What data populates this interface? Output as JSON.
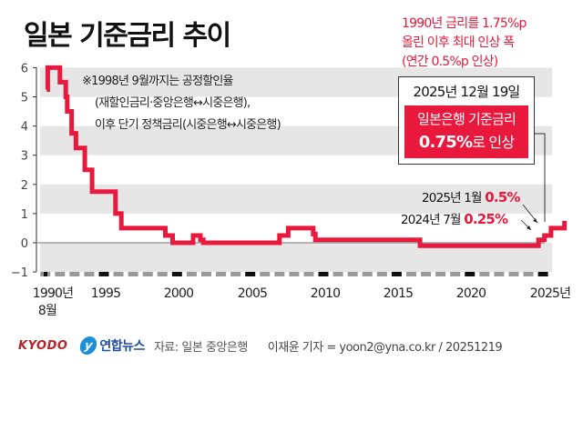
{
  "header": {
    "title": "일본 기준금리 추이"
  },
  "note_red": {
    "lines": [
      "1990년 금리를 1.75%p",
      "올린 이후 최대 인상 폭",
      "(연간 0.5%p 인상)"
    ]
  },
  "callout": {
    "date": "2025년 12월 19일",
    "line1": "일본은행 기준금리",
    "value": "0.75%",
    "suffix": "로 인상"
  },
  "footnote": {
    "lines": [
      "※1998년 9월까지는 공정할인율",
      "(재할인금리·중앙은행↔시중은행),",
      "이후 단기 정책금리(시중은행↔시중은행)"
    ]
  },
  "annotations": [
    {
      "label": "2025년 1월",
      "value": "0.5%"
    },
    {
      "label": "2024년 7월",
      "value": "0.25%"
    }
  ],
  "axes": {
    "y_ticks": [
      "6",
      "5",
      "4",
      "3",
      "2",
      "1",
      "0",
      "−1"
    ],
    "x_ticks": [
      "1990년",
      "1995",
      "2000",
      "2005",
      "2010",
      "2015",
      "2020",
      "2025년"
    ],
    "x_first_sub": "8월"
  },
  "footer": {
    "kyodo": "KYODO",
    "yna_mark": "y",
    "yna_text": "연합뉴스",
    "source": "자료: 일본 중앙은행",
    "reporter": "이재윤 기자 = yoon2@yna.co.kr / 20251219"
  },
  "colors": {
    "line": "#e8193c",
    "band": "#e6e6e6",
    "accent": "#e8193c",
    "kyodo": "#b5252c",
    "yna": "#1e8fd6"
  },
  "chart_data": {
    "type": "line",
    "style": "step",
    "title": "일본 기준금리 추이",
    "xlabel": "",
    "ylabel": "",
    "ylim": [
      -1,
      6
    ],
    "xlim": [
      1990.6,
      2025.97
    ],
    "x_ticks": [
      1990,
      1995,
      2000,
      2005,
      2010,
      2015,
      2020,
      2025
    ],
    "y_ticks": [
      -1,
      0,
      1,
      2,
      3,
      4,
      5,
      6
    ],
    "grid": "alternating horizontal bands",
    "series": [
      {
        "name": "일본 기준금리 (%)",
        "points": [
          {
            "x": 1990.6,
            "y": 5.25
          },
          {
            "x": 1990.67,
            "y": 6.0
          },
          {
            "x": 1991.5,
            "y": 5.5
          },
          {
            "x": 1991.9,
            "y": 5.0
          },
          {
            "x": 1992.0,
            "y": 4.5
          },
          {
            "x": 1992.3,
            "y": 3.75
          },
          {
            "x": 1992.6,
            "y": 3.25
          },
          {
            "x": 1993.2,
            "y": 2.5
          },
          {
            "x": 1993.7,
            "y": 1.75
          },
          {
            "x": 1995.3,
            "y": 1.0
          },
          {
            "x": 1995.7,
            "y": 0.5
          },
          {
            "x": 1998.7,
            "y": 0.25
          },
          {
            "x": 1999.2,
            "y": 0.0
          },
          {
            "x": 2000.6,
            "y": 0.25
          },
          {
            "x": 2001.1,
            "y": 0.1
          },
          {
            "x": 2001.3,
            "y": 0.0
          },
          {
            "x": 2006.5,
            "y": 0.25
          },
          {
            "x": 2007.1,
            "y": 0.5
          },
          {
            "x": 2008.8,
            "y": 0.3
          },
          {
            "x": 2008.95,
            "y": 0.1
          },
          {
            "x": 2016.1,
            "y": -0.1
          },
          {
            "x": 2024.2,
            "y": 0.1
          },
          {
            "x": 2024.6,
            "y": 0.25
          },
          {
            "x": 2025.05,
            "y": 0.5
          },
          {
            "x": 2025.97,
            "y": 0.75
          }
        ]
      }
    ],
    "annotations": [
      {
        "x": 2024.6,
        "y": 0.25,
        "text": "2024년 7월 0.25%"
      },
      {
        "x": 2025.05,
        "y": 0.5,
        "text": "2025년 1월 0.5%"
      },
      {
        "x": 2025.97,
        "y": 0.75,
        "text": "2025년 12월 19일 일본은행 기준금리 0.75%로 인상"
      }
    ],
    "notes": [
      "1990년 금리를 1.75%p 올린 이후 최대 인상 폭 (연간 0.5%p 인상)",
      "※1998년 9월까지는 공정할인율(재할인금리·중앙은행↔시중은행), 이후 단기 정책금리(시중은행↔시중은행)"
    ]
  }
}
